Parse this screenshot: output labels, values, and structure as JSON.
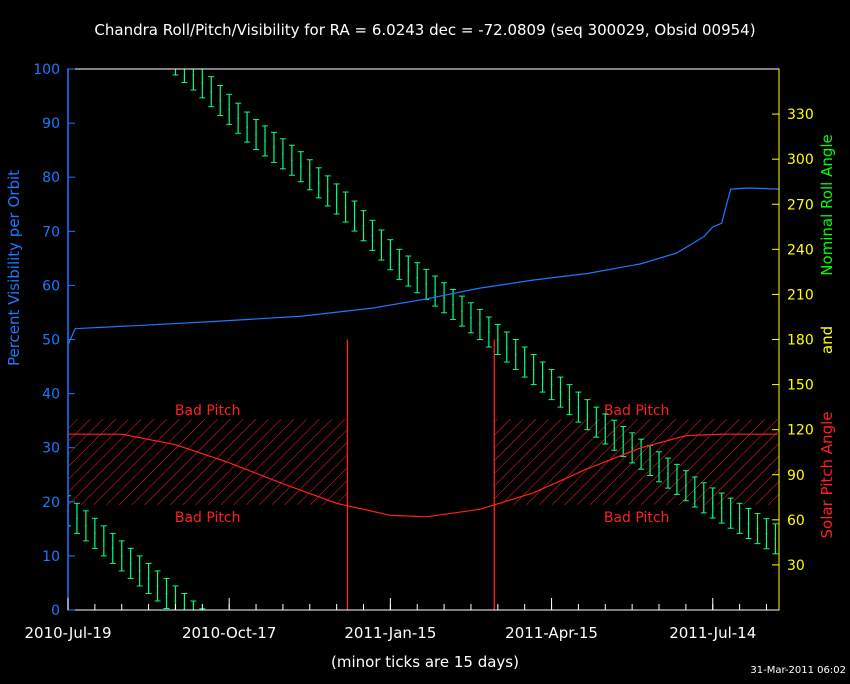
{
  "chart_data": {
    "type": "line",
    "title": "Chandra Roll/Pitch/Visibility for RA = 6.0243 dec = -72.0809 (seq 300029, Obsid 00954)",
    "xlabel": "(minor ticks are 15 days)",
    "ylabel_left": "Percent Visibility per Orbit",
    "ylabel_right": [
      "Nominal Roll Angle",
      "and",
      "Solar Pitch Angle"
    ],
    "timestamp": "31-Mar-2011 06:02",
    "x_unit": "days since 2010-Jul-19",
    "xlim": [
      0,
      397
    ],
    "x_ticks": [
      {
        "day": 0,
        "label": "2010-Jul-19"
      },
      {
        "day": 90,
        "label": "2010-Oct-17"
      },
      {
        "day": 180,
        "label": "2011-Jan-15"
      },
      {
        "day": 270,
        "label": "2011-Apr-15"
      },
      {
        "day": 360,
        "label": "2011-Jul-14"
      }
    ],
    "minor_tick_days": 15,
    "ylim_left": [
      0,
      100
    ],
    "left_ticks": [
      "0",
      "10",
      "20",
      "30",
      "40",
      "50",
      "60",
      "70",
      "80",
      "90",
      "100"
    ],
    "ylim_right": [
      0,
      360
    ],
    "right_ticks": [
      "30",
      "60",
      "90",
      "120",
      "150",
      "180",
      "210",
      "240",
      "270",
      "300",
      "330"
    ],
    "bad_pitch": {
      "label": "Bad Pitch",
      "pitch_range": [
        70,
        127
      ],
      "intervals": [
        [
          0,
          156
        ],
        [
          238,
          397
        ]
      ]
    },
    "marker_lines": {
      "days": [
        156,
        238
      ],
      "top_deg": 180
    },
    "visibility": {
      "name": "Percent Visibility per Orbit",
      "color": "#1e78ff",
      "points": [
        [
          0,
          49
        ],
        [
          4,
          52
        ],
        [
          40,
          52.6
        ],
        [
          80,
          53.3
        ],
        [
          130,
          54.3
        ],
        [
          170,
          55.8
        ],
        [
          200,
          57.5
        ],
        [
          230,
          59.5
        ],
        [
          260,
          61
        ],
        [
          290,
          62.2
        ],
        [
          320,
          64
        ],
        [
          340,
          66
        ],
        [
          355,
          69
        ],
        [
          360,
          70.8
        ],
        [
          365,
          71.5
        ],
        [
          370,
          77.8
        ],
        [
          380,
          78
        ],
        [
          397,
          77.8
        ]
      ]
    },
    "pitch": {
      "name": "Solar Pitch Angle",
      "color": "#ff2020",
      "points": [
        [
          0,
          117
        ],
        [
          30,
          117
        ],
        [
          60,
          110
        ],
        [
          90,
          98
        ],
        [
          120,
          84
        ],
        [
          150,
          71
        ],
        [
          180,
          63
        ],
        [
          200,
          62
        ],
        [
          230,
          67
        ],
        [
          260,
          78
        ],
        [
          290,
          94
        ],
        [
          320,
          108
        ],
        [
          345,
          116
        ],
        [
          365,
          117
        ],
        [
          397,
          117
        ]
      ]
    },
    "roll": {
      "name": "Nominal Roll Angle",
      "color": "#00ff80",
      "bar_half_range_deg": 10,
      "bar_spacing_days": 5,
      "points_unwrapped": [
        [
          0,
          426
        ],
        [
          74,
          352
        ],
        [
          102,
          319
        ],
        [
          130,
          295
        ],
        [
          157,
          266
        ],
        [
          185,
          230
        ],
        [
          230,
          190
        ],
        [
          297,
          123
        ],
        [
          353,
          76
        ],
        [
          397,
          46
        ]
      ]
    },
    "colors": {
      "axes": "#ffffff",
      "left_axis": "#1e78ff",
      "right_ticks": "#ffff00",
      "roll_label": "#00ff00",
      "pitch_label": "#ff2020"
    }
  }
}
